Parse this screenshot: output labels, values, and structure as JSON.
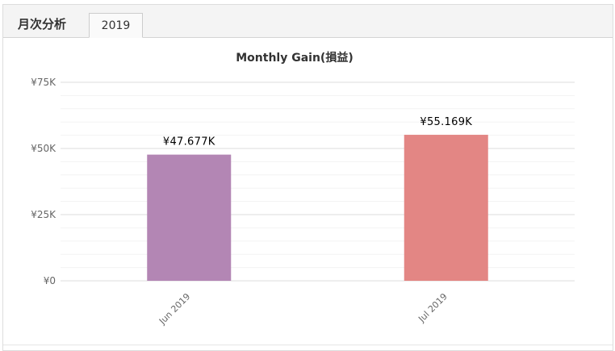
{
  "panel": {
    "title": "月次分析"
  },
  "tabs": [
    {
      "label": "2019",
      "active": true
    }
  ],
  "chart_data": {
    "type": "bar",
    "title": "Monthly Gain(損益)",
    "categories": [
      "Jun 2019",
      "Jul 2019"
    ],
    "values": [
      47677,
      55169
    ],
    "data_labels": [
      "¥47.677K",
      "¥55.169K"
    ],
    "colors": [
      "#b386b4",
      "#e38684"
    ],
    "ylim": [
      0,
      75000
    ],
    "yticks": [
      0,
      25000,
      50000,
      75000
    ],
    "ytick_labels": [
      "¥0",
      "¥25K",
      "¥50K",
      "¥75K"
    ],
    "grid": true,
    "legend": "none"
  }
}
